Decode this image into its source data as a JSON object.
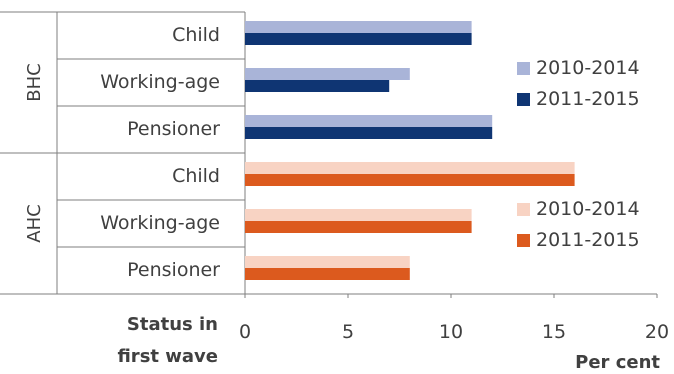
{
  "chart_data": {
    "type": "bar",
    "orientation": "horizontal",
    "groups": [
      {
        "name": "BHC",
        "categories": [
          "Child",
          "Working-age",
          "Pensioner"
        ],
        "series": [
          {
            "name": "2010-2014",
            "color": "#a9b4d8",
            "values": [
              11,
              8,
              12
            ]
          },
          {
            "name": "2011-2015",
            "color": "#0f3573",
            "values": [
              11,
              7,
              12
            ]
          }
        ]
      },
      {
        "name": "AHC",
        "categories": [
          "Child",
          "Working-age",
          "Pensioner"
        ],
        "series": [
          {
            "name": "2010-2014",
            "color": "#f8d3c3",
            "values": [
              16,
              11,
              8
            ]
          },
          {
            "name": "2011-2015",
            "color": "#dc5a1e",
            "values": [
              16,
              11,
              8
            ]
          }
        ]
      }
    ],
    "x_ticks": [
      0,
      5,
      10,
      15,
      20
    ],
    "xlim": [
      0,
      20
    ],
    "xlabel": "Per cent",
    "ylabel_line1": "Status in",
    "ylabel_line2": "first wave",
    "grid": false,
    "legend_placement": "right of each panel"
  }
}
